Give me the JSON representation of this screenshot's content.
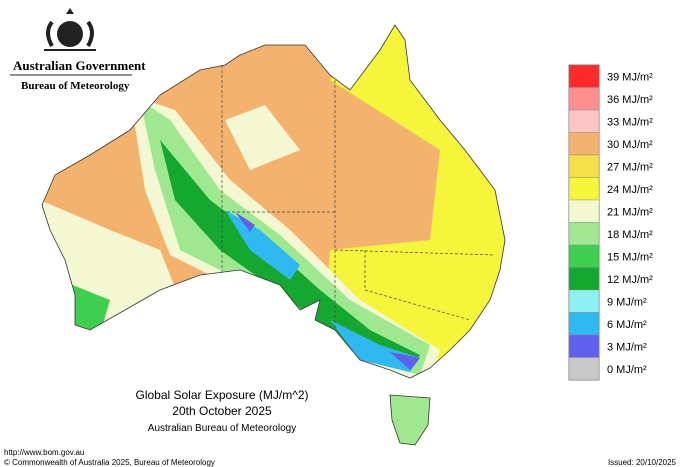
{
  "header": {
    "agency": "Australian Government",
    "bureau": "Bureau of Meteorology"
  },
  "map": {
    "title": "Global Solar Exposure (MJ/m^2)",
    "date": "20th October 2025",
    "source": "Australian Bureau of Meteorology"
  },
  "legend": [
    {
      "label": "39 MJ/m²",
      "color": "#ff2a2a"
    },
    {
      "label": "36 MJ/m²",
      "color": "#ff8f8f"
    },
    {
      "label": "33 MJ/m²",
      "color": "#ffc4c4"
    },
    {
      "label": "30 MJ/m²",
      "color": "#f3b36e"
    },
    {
      "label": "27 MJ/m²",
      "color": "#f6e04a"
    },
    {
      "label": "24 MJ/m²",
      "color": "#f5f53c"
    },
    {
      "label": "21 MJ/m²",
      "color": "#f3f8d2"
    },
    {
      "label": "18 MJ/m²",
      "color": "#9fe890"
    },
    {
      "label": "15 MJ/m²",
      "color": "#3fcf50"
    },
    {
      "label": "12 MJ/m²",
      "color": "#14a830"
    },
    {
      "label": "9 MJ/m²",
      "color": "#90f0f0"
    },
    {
      "label": "6 MJ/m²",
      "color": "#30b8f0"
    },
    {
      "label": "3 MJ/m²",
      "color": "#6060f0"
    },
    {
      "label": "0 MJ/m²",
      "color": "#c8c8c8"
    }
  ],
  "footer": {
    "url": "http://www.bom.gov.au",
    "copyright": "© Commonwealth of Australia 2025, Bureau of Meteorology",
    "issued": "Issued: 20/10/2025"
  }
}
